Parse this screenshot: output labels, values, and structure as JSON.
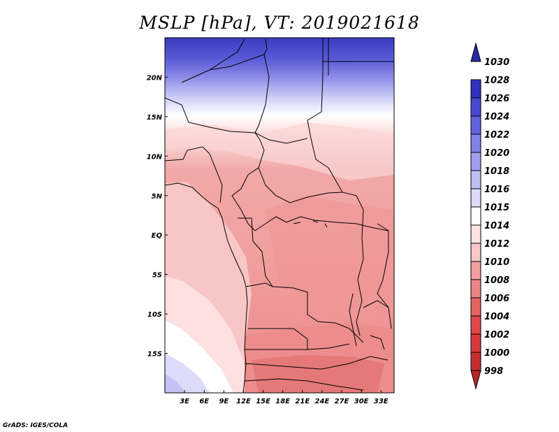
{
  "title": "MSLP [hPa], VT: 2019021618",
  "credit": "GrADS: IGES/COLA",
  "map": {
    "lon_range": [
      0,
      35
    ],
    "lat_range": [
      -20,
      25
    ],
    "lon_ticks": [
      {
        "v": 3,
        "label": "3E"
      },
      {
        "v": 6,
        "label": "6E"
      },
      {
        "v": 9,
        "label": "9E"
      },
      {
        "v": 12,
        "label": "12E"
      },
      {
        "v": 15,
        "label": "15E"
      },
      {
        "v": 18,
        "label": "18E"
      },
      {
        "v": 21,
        "label": "21E"
      },
      {
        "v": 24,
        "label": "24E"
      },
      {
        "v": 27,
        "label": "27E"
      },
      {
        "v": 30,
        "label": "30E"
      },
      {
        "v": 33,
        "label": "33E"
      }
    ],
    "lat_ticks": [
      {
        "v": 20,
        "label": "20N"
      },
      {
        "v": 15,
        "label": "15N"
      },
      {
        "v": 10,
        "label": "10N"
      },
      {
        "v": 5,
        "label": "5N"
      },
      {
        "v": 0,
        "label": "EQ"
      },
      {
        "v": -5,
        "label": "5S"
      },
      {
        "v": -10,
        "label": "10S"
      },
      {
        "v": -15,
        "label": "15S"
      }
    ]
  },
  "colorbar": {
    "levels": [
      {
        "label": "998",
        "color": "#b8252b"
      },
      {
        "label": "1000",
        "color": "#c52e30"
      },
      {
        "label": "1002",
        "color": "#d53a3a"
      },
      {
        "label": "1004",
        "color": "#e04848"
      },
      {
        "label": "1006",
        "color": "#e46262"
      },
      {
        "label": "1008",
        "color": "#ea8585"
      },
      {
        "label": "1010",
        "color": "#f19e9e"
      },
      {
        "label": "1012",
        "color": "#f8c8c8"
      },
      {
        "label": "1014",
        "color": "#fde3e3"
      },
      {
        "label": "1015",
        "color": "#ffffff"
      },
      {
        "label": "1016",
        "color": "#dcdcf8"
      },
      {
        "label": "1018",
        "color": "#bebef3"
      },
      {
        "label": "1020",
        "color": "#a0a0ee"
      },
      {
        "label": "1022",
        "color": "#8181e6"
      },
      {
        "label": "1024",
        "color": "#6262dc"
      },
      {
        "label": "1026",
        "color": "#4848cf"
      },
      {
        "label": "1028",
        "color": "#3232bd"
      },
      {
        "label": "1030",
        "color": "#2a2aa5"
      }
    ]
  }
}
